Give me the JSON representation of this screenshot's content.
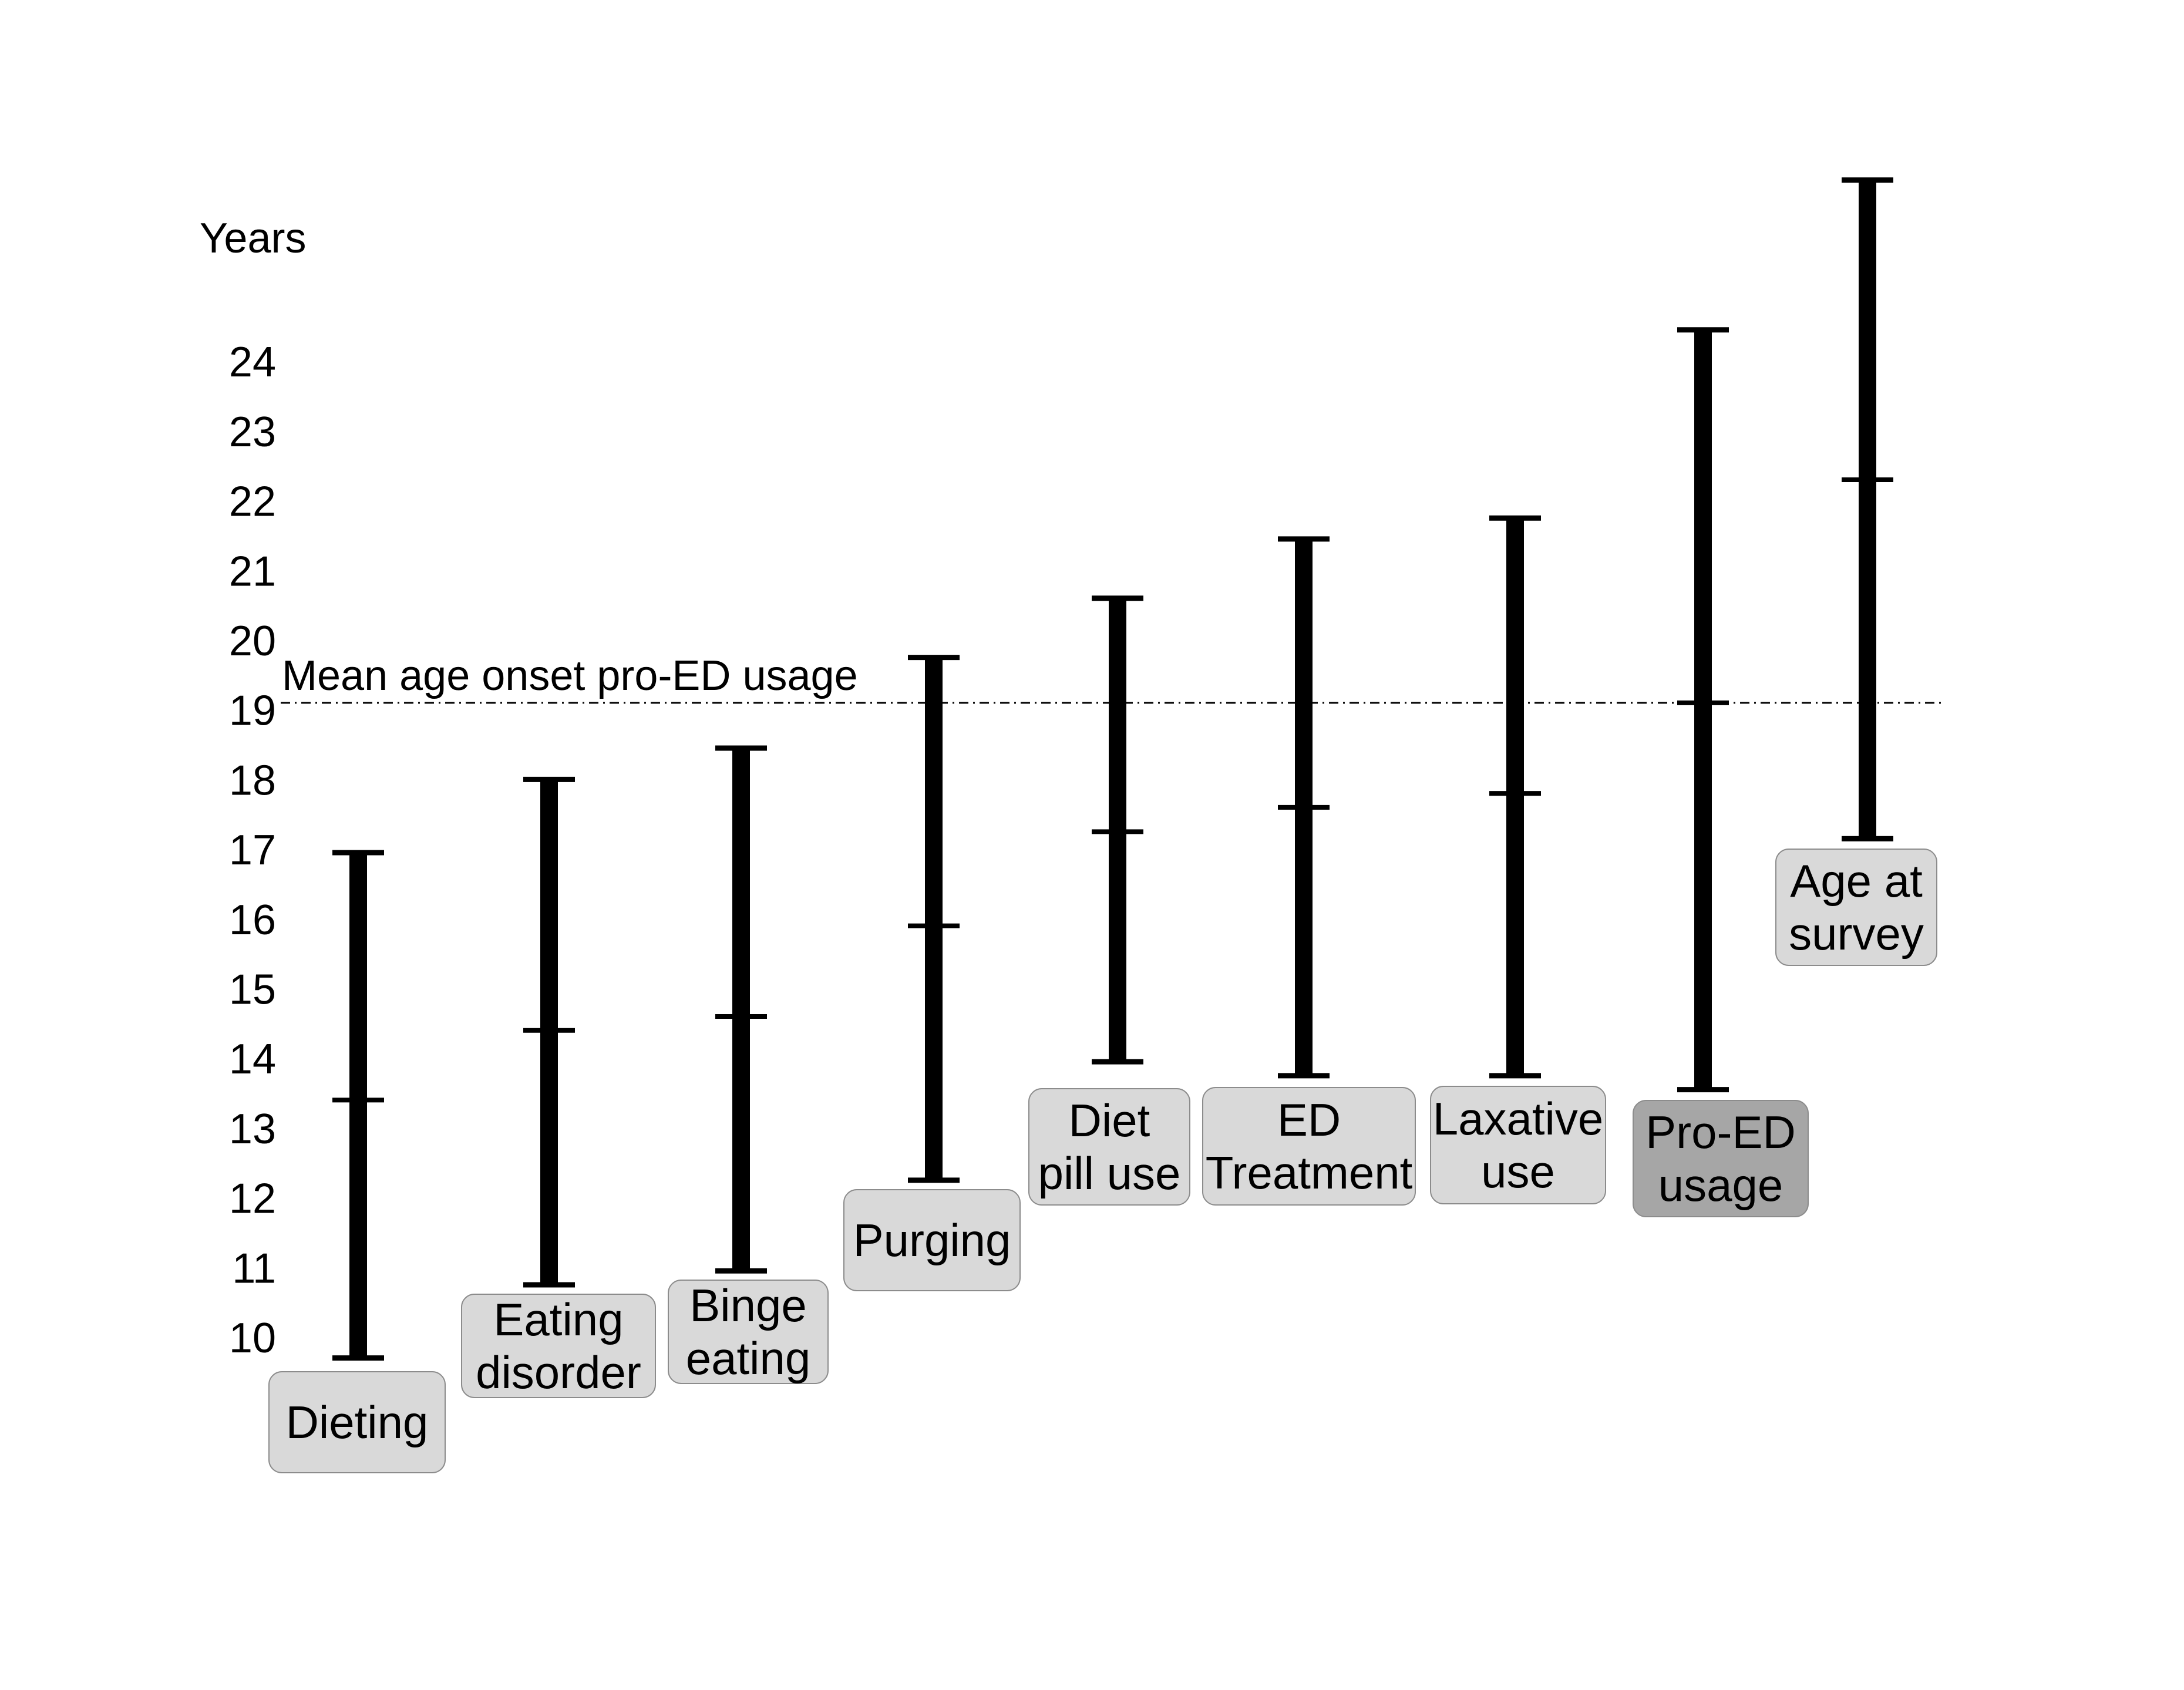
{
  "chart_data": {
    "type": "range",
    "ylabel": "Years",
    "yticks": [
      10,
      11,
      12,
      13,
      14,
      15,
      16,
      17,
      18,
      19,
      20,
      21,
      22,
      23,
      24
    ],
    "ylim": [
      9.5,
      25.5
    ],
    "grid": false,
    "reference_line": {
      "label": "Mean age onset pro-ED usage",
      "value": 19.1
    },
    "series": [
      {
        "name": "",
        "ranges": [
          {
            "category": "Dieting",
            "lines": [
              "Dieting"
            ],
            "min": 9.7,
            "mean": 13.4,
            "max": 16.95,
            "highlight": false
          },
          {
            "category": "Eating disorder",
            "lines": [
              "Eating",
              "disorder"
            ],
            "min": 10.75,
            "mean": 14.4,
            "max": 18.0,
            "highlight": false
          },
          {
            "category": "Binge eating",
            "lines": [
              "Binge",
              "eating"
            ],
            "min": 10.95,
            "mean": 14.6,
            "max": 18.45,
            "highlight": false
          },
          {
            "category": "Purging",
            "lines": [
              "Purging"
            ],
            "min": 12.25,
            "mean": 15.9,
            "max": 19.75,
            "highlight": false
          },
          {
            "category": "Diet pill use",
            "lines": [
              "Diet",
              "pill use"
            ],
            "min": 13.95,
            "mean": 17.25,
            "max": 20.6,
            "highlight": false
          },
          {
            "category": "ED Treatment",
            "lines": [
              "ED",
              "Treatment"
            ],
            "min": 13.75,
            "mean": 17.6,
            "max": 21.45,
            "highlight": false
          },
          {
            "category": "Laxative use",
            "lines": [
              "Laxative",
              "use"
            ],
            "min": 13.75,
            "mean": 17.8,
            "max": 21.75,
            "highlight": false
          },
          {
            "category": "Pro-ED usage",
            "lines": [
              "Pro-ED",
              "usage"
            ],
            "min": 13.55,
            "mean": 19.1,
            "max": 24.45,
            "highlight": true
          },
          {
            "category": "Age at survey",
            "lines": [
              "Age at",
              "survey"
            ],
            "min": 17.15,
            "mean": 22.3,
            "max": 26.6,
            "highlight": false
          }
        ]
      }
    ],
    "colors": {
      "bar": "#000000",
      "label_box": "#d9d9d9",
      "label_box_highlight": "#a6a6a6",
      "label_border": "#8c8c8c",
      "reference_line": "#000000"
    }
  }
}
